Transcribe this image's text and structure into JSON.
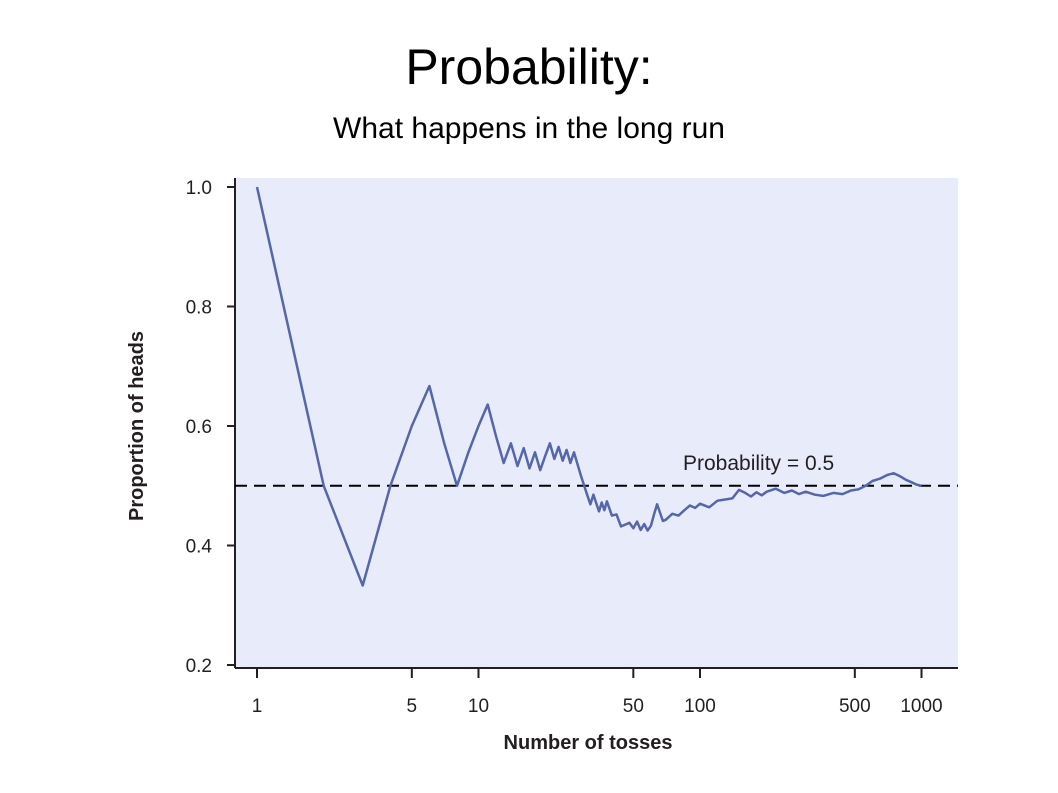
{
  "slide": {
    "title": "Probability:",
    "subtitle": "What happens in the long run"
  },
  "colors": {
    "plot_background": "#e8ebfa",
    "series_line": "#5567a8",
    "axis": "#231f20",
    "reference_line": "#000000"
  },
  "chart_data": {
    "type": "line",
    "title": "",
    "xlabel": "Number of tosses",
    "ylabel": "Proportion of heads",
    "x_scale": "log",
    "xlim": [
      1,
      1500
    ],
    "ylim": [
      0.2,
      1.0
    ],
    "x_ticks": [
      1,
      5,
      10,
      50,
      100,
      500,
      1000
    ],
    "x_tick_labels": [
      "1",
      "5",
      "10",
      "50",
      "100",
      "500",
      "1000"
    ],
    "y_ticks": [
      0.2,
      0.4,
      0.6,
      0.8,
      1.0
    ],
    "y_tick_labels": [
      "0.2",
      "0.4",
      "0.6",
      "0.8",
      "1.0"
    ],
    "grid": false,
    "reference_line": {
      "y": 0.5,
      "label": "Probability = 0.5",
      "style": "dashed"
    },
    "series": [
      {
        "x": [
          1,
          2,
          3,
          4,
          5,
          6,
          7,
          8,
          9,
          10,
          11,
          12,
          13,
          14,
          15,
          16,
          17,
          18,
          19,
          20,
          21,
          22,
          23,
          24,
          25,
          26,
          27,
          28,
          29,
          30,
          31,
          32,
          33,
          34,
          35,
          36,
          37,
          38,
          40,
          42,
          44,
          46,
          48,
          50,
          52,
          54,
          56,
          58,
          60,
          62,
          64,
          66,
          68,
          70,
          75,
          80,
          85,
          90,
          95,
          100,
          110,
          120,
          130,
          140,
          150,
          160,
          170,
          180,
          190,
          200,
          220,
          240,
          260,
          280,
          300,
          330,
          360,
          400,
          440,
          480,
          520,
          560,
          600,
          650,
          700,
          750,
          800,
          850,
          900,
          950,
          1000
        ],
        "y": [
          1.0,
          0.5,
          0.333,
          0.5,
          0.6,
          0.667,
          0.571,
          0.5,
          0.556,
          0.6,
          0.636,
          0.583,
          0.538,
          0.571,
          0.533,
          0.563,
          0.529,
          0.556,
          0.526,
          0.55,
          0.571,
          0.545,
          0.565,
          0.542,
          0.56,
          0.538,
          0.556,
          0.536,
          0.517,
          0.5,
          0.484,
          0.469,
          0.485,
          0.471,
          0.457,
          0.472,
          0.459,
          0.474,
          0.45,
          0.452,
          0.432,
          0.435,
          0.438,
          0.429,
          0.44,
          0.426,
          0.436,
          0.425,
          0.433,
          0.452,
          0.469,
          0.455,
          0.441,
          0.443,
          0.453,
          0.45,
          0.459,
          0.467,
          0.463,
          0.47,
          0.464,
          0.475,
          0.477,
          0.479,
          0.493,
          0.488,
          0.482,
          0.489,
          0.484,
          0.49,
          0.495,
          0.488,
          0.492,
          0.486,
          0.49,
          0.485,
          0.483,
          0.488,
          0.486,
          0.492,
          0.494,
          0.5,
          0.508,
          0.512,
          0.518,
          0.521,
          0.516,
          0.51,
          0.506,
          0.502,
          0.5
        ]
      }
    ]
  }
}
